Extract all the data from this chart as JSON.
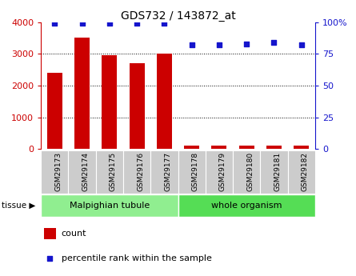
{
  "title": "GDS732 / 143872_at",
  "samples": [
    "GSM29173",
    "GSM29174",
    "GSM29175",
    "GSM29176",
    "GSM29177",
    "GSM29178",
    "GSM29179",
    "GSM29180",
    "GSM29181",
    "GSM29182"
  ],
  "counts": [
    2400,
    3500,
    2950,
    2700,
    3000,
    100,
    100,
    100,
    120,
    100
  ],
  "percentiles": [
    99,
    99,
    99,
    99,
    99,
    82,
    82,
    83,
    84,
    82
  ],
  "bar_color": "#cc0000",
  "dot_color": "#1515cc",
  "left_ylim": [
    0,
    4000
  ],
  "right_ylim": [
    0,
    100
  ],
  "left_yticks": [
    0,
    1000,
    2000,
    3000,
    4000
  ],
  "right_yticks": [
    0,
    25,
    50,
    75,
    100
  ],
  "right_yticklabels": [
    "0",
    "25",
    "50",
    "75",
    "100%"
  ],
  "tissue_groups": [
    {
      "label": "Malpighian tubule",
      "start": 0,
      "end": 5,
      "color": "#90ee90"
    },
    {
      "label": "whole organism",
      "start": 5,
      "end": 10,
      "color": "#55dd55"
    }
  ],
  "tissue_label": "tissue",
  "legend_count_label": "count",
  "legend_percentile_label": "percentile rank within the sample",
  "left_axis_color": "#cc0000",
  "right_axis_color": "#1515cc",
  "xticklabel_bg": "#cccccc",
  "bar_width": 0.55
}
